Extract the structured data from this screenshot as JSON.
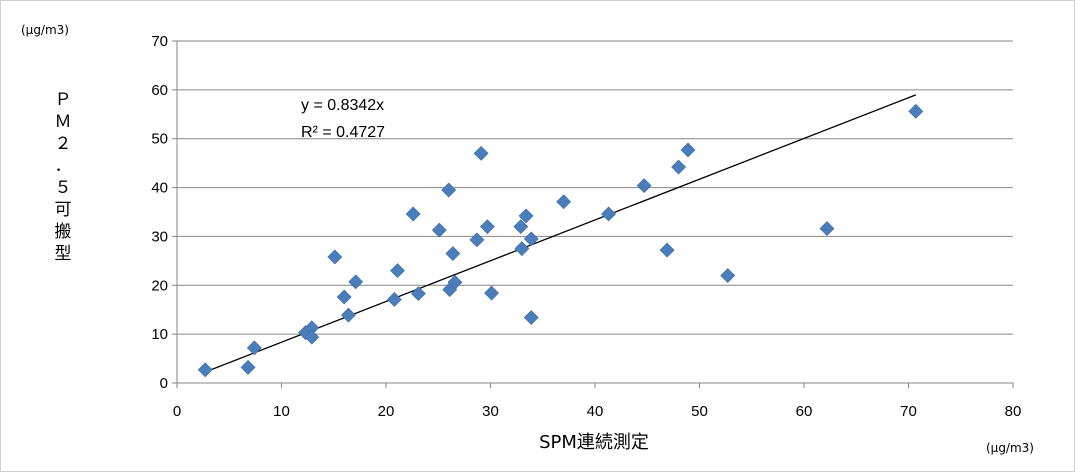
{
  "chart_data": {
    "type": "scatter",
    "title": "",
    "xlabel": "SPM連続測定",
    "ylabel": "ＰＭ２．５可搬型",
    "x_unit": "(μg/m3)",
    "y_unit": "(μg/m3)",
    "xlim": [
      0,
      80
    ],
    "ylim": [
      0,
      70
    ],
    "x_ticks": [
      0,
      10,
      20,
      30,
      40,
      50,
      60,
      70,
      80
    ],
    "y_ticks": [
      0,
      10,
      20,
      30,
      40,
      50,
      60,
      70
    ],
    "grid": {
      "horizontal": true,
      "vertical": false
    },
    "legend": "none",
    "marker": {
      "shape": "diamond",
      "color": "#4a7ebb"
    },
    "trendline": {
      "type": "linear",
      "slope": 0.8342,
      "intercept": 0,
      "x_range": [
        2.7,
        70.7
      ],
      "color": "#000000"
    },
    "equation": "y = 0.8342x",
    "r_squared": "R² = 0.4727",
    "points": [
      {
        "x": 2.7,
        "y": 2.7
      },
      {
        "x": 6.8,
        "y": 3.2
      },
      {
        "x": 7.4,
        "y": 7.2
      },
      {
        "x": 12.3,
        "y": 10.3
      },
      {
        "x": 12.9,
        "y": 11.3
      },
      {
        "x": 12.9,
        "y": 9.4
      },
      {
        "x": 15.1,
        "y": 25.8
      },
      {
        "x": 16.0,
        "y": 17.6
      },
      {
        "x": 16.4,
        "y": 13.9
      },
      {
        "x": 17.1,
        "y": 20.7
      },
      {
        "x": 20.8,
        "y": 17.1
      },
      {
        "x": 21.1,
        "y": 23.0
      },
      {
        "x": 22.6,
        "y": 34.6
      },
      {
        "x": 23.1,
        "y": 18.3
      },
      {
        "x": 25.1,
        "y": 31.3
      },
      {
        "x": 26.0,
        "y": 39.5
      },
      {
        "x": 26.1,
        "y": 19.1
      },
      {
        "x": 26.4,
        "y": 26.5
      },
      {
        "x": 26.6,
        "y": 20.6
      },
      {
        "x": 28.7,
        "y": 29.3
      },
      {
        "x": 29.1,
        "y": 47.0
      },
      {
        "x": 29.7,
        "y": 32.0
      },
      {
        "x": 30.1,
        "y": 18.4
      },
      {
        "x": 32.9,
        "y": 32.0
      },
      {
        "x": 33.0,
        "y": 27.5
      },
      {
        "x": 33.4,
        "y": 34.2
      },
      {
        "x": 33.9,
        "y": 29.5
      },
      {
        "x": 33.9,
        "y": 13.4
      },
      {
        "x": 37.0,
        "y": 37.1
      },
      {
        "x": 41.3,
        "y": 34.6
      },
      {
        "x": 44.7,
        "y": 40.4
      },
      {
        "x": 46.9,
        "y": 27.2
      },
      {
        "x": 48.0,
        "y": 44.2
      },
      {
        "x": 48.9,
        "y": 47.7
      },
      {
        "x": 52.7,
        "y": 22.0
      },
      {
        "x": 62.2,
        "y": 31.6
      },
      {
        "x": 70.7,
        "y": 55.6
      }
    ]
  },
  "ylabel_chars": [
    "Ｐ",
    "Ｍ",
    "２",
    "．",
    "５",
    "可",
    "搬",
    "型"
  ]
}
